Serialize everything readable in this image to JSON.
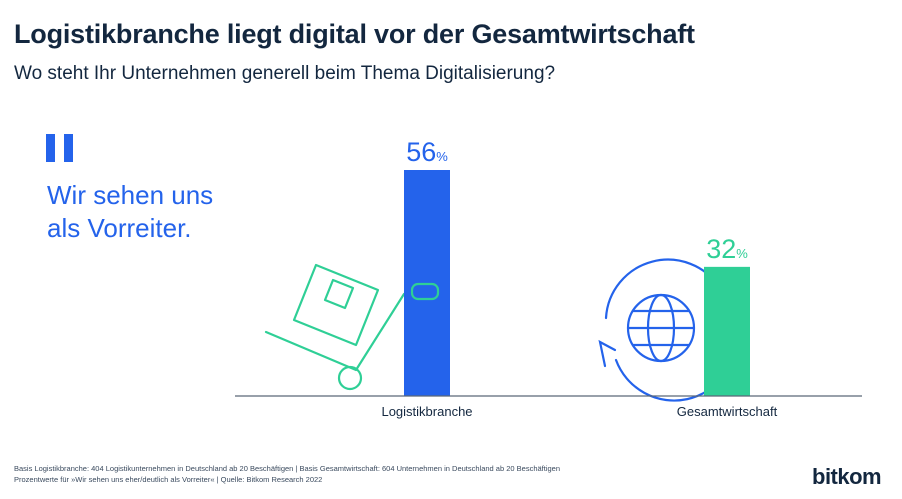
{
  "header": {
    "title": "Logistikbranche liegt digital vor der Gesamtwirtschaft",
    "subtitle": "Wo steht Ihr Unternehmen generell beim Thema Digitalisierung?"
  },
  "callout": {
    "line1": "Wir sehen uns",
    "line2": "als Vorreiter."
  },
  "chart_data": {
    "type": "bar",
    "categories": [
      "Logistikbranche",
      "Gesamtwirtschaft"
    ],
    "values": [
      56,
      32
    ],
    "unit": "%",
    "ylim": [
      0,
      60
    ],
    "colors": [
      "#2463eb",
      "#2fcf96"
    ],
    "grid": false
  },
  "footer": {
    "line1": "Basis Logistikbranche: 404 Logistikunternehmen in Deutschland ab 20 Beschäftigen | Basis Gesamtwirtschaft: 604 Unternehmen in Deutschland ab 20 Beschäftigen",
    "line2": "Prozentwerte für »Wir sehen uns eher/deutlich als Vorreiter« | Quelle: Bitkom Research 2022"
  },
  "brand": {
    "logo_text": "bitkom"
  },
  "icons": [
    "quote-icon",
    "hand-truck-icon",
    "globe-cycle-icon"
  ]
}
